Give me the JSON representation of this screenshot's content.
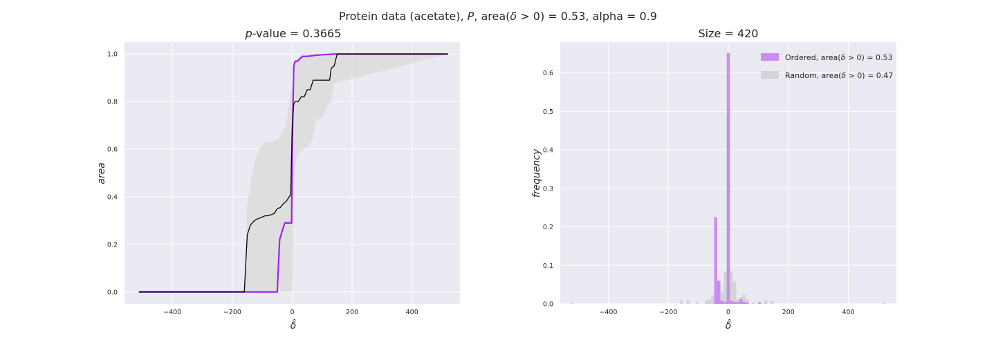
{
  "figure": {
    "suptitle": "Protein data (acetate), P, area(δ̂ > 0) = 0.53, alpha = 0.9",
    "suptitle_parts": {
      "prefix": "Protein data (acetate), ",
      "p": "P",
      "mid": ", area(",
      "delta": "δ",
      "suffix": " > 0) = 0.53, alpha = 0.9"
    },
    "colors": {
      "background": "#EAEAF2",
      "grid": "#FFFFFF",
      "ordered": "#A020F0",
      "random_line": "#000000",
      "band": "#DCDCDC",
      "ordered_hist": "#C77DF3",
      "random_hist": "#CFCFCF"
    }
  },
  "chart_data": [
    {
      "type": "line",
      "title": "p-value = 0.3665",
      "title_parts": {
        "italic": "p",
        "rest": "-value = 0.3665"
      },
      "xlabel": "δ̂",
      "ylabel": "area",
      "xlim": [
        -560,
        560
      ],
      "ylim": [
        -0.05,
        1.05
      ],
      "xticks": [
        -400,
        -200,
        0,
        200,
        400
      ],
      "xtick_labels": [
        "−400",
        "−200",
        "0",
        "200",
        "400"
      ],
      "yticks": [
        0.0,
        0.2,
        0.4,
        0.6,
        0.8,
        1.0
      ],
      "ytick_labels": [
        "0.0",
        "0.2",
        "0.4",
        "0.6",
        "0.8",
        "1.0"
      ],
      "grid": true,
      "band": {
        "name": "random band",
        "x": [
          -512,
          -160,
          -150,
          -140,
          -130,
          -120,
          -110,
          -100,
          -90,
          -80,
          -70,
          -60,
          -50,
          -40,
          -30,
          -20,
          -10,
          0,
          5,
          10,
          20,
          30,
          40,
          50,
          60,
          70,
          80,
          90,
          100,
          110,
          120,
          130,
          140,
          150,
          520
        ],
        "upper": [
          0.0,
          0.0,
          0.37,
          0.45,
          0.52,
          0.57,
          0.6,
          0.62,
          0.63,
          0.63,
          0.63,
          0.64,
          0.64,
          0.65,
          0.68,
          0.7,
          0.8,
          0.86,
          0.93,
          0.97,
          0.98,
          1.0,
          1.0,
          1.0,
          1.0,
          1.0,
          1.0,
          1.0,
          1.0,
          1.0,
          1.0,
          1.0,
          1.0,
          1.0,
          1.0
        ],
        "lower": [
          0.0,
          0.0,
          0.0,
          0.0,
          0.0,
          0.0,
          0.0,
          0.0,
          0.0,
          0.0,
          0.0,
          0.0,
          0.0,
          0.0,
          0.0,
          0.0,
          0.0,
          0.0,
          0.4,
          0.53,
          0.58,
          0.59,
          0.6,
          0.61,
          0.62,
          0.65,
          0.72,
          0.73,
          0.73,
          0.76,
          0.79,
          0.8,
          0.88,
          0.88,
          1.0
        ]
      },
      "series": [
        {
          "name": "Ordered",
          "x": [
            -512,
            -50,
            -42,
            -35,
            -25,
            -10,
            -2,
            0,
            5,
            10,
            18,
            25,
            35,
            50,
            80,
            100,
            120,
            140,
            150,
            520
          ],
          "y": [
            0.0,
            0.0,
            0.22,
            0.25,
            0.29,
            0.29,
            0.29,
            0.6,
            0.95,
            0.97,
            0.97,
            0.98,
            0.99,
            0.99,
            0.995,
            0.997,
            0.998,
            1.0,
            1.0,
            1.0
          ]
        },
        {
          "name": "Random",
          "x": [
            -512,
            -160,
            -150,
            -140,
            -130,
            -120,
            -110,
            -100,
            -90,
            -80,
            -70,
            -60,
            -50,
            -40,
            -30,
            -20,
            -10,
            -5,
            0,
            5,
            10,
            20,
            30,
            40,
            50,
            60,
            70,
            80,
            90,
            100,
            110,
            120,
            125,
            130,
            140,
            150,
            520
          ],
          "y": [
            0.0,
            0.0,
            0.24,
            0.28,
            0.295,
            0.305,
            0.31,
            0.315,
            0.32,
            0.32,
            0.325,
            0.33,
            0.35,
            0.355,
            0.37,
            0.38,
            0.4,
            0.41,
            0.7,
            0.79,
            0.8,
            0.8,
            0.82,
            0.82,
            0.85,
            0.85,
            0.89,
            0.89,
            0.89,
            0.89,
            0.89,
            0.89,
            0.89,
            0.94,
            0.95,
            1.0,
            1.0
          ]
        }
      ]
    },
    {
      "type": "bar",
      "title": "Size = 420",
      "xlabel": "δ̂",
      "ylabel": "frequency",
      "xlim": [
        -560,
        560
      ],
      "ylim": [
        0,
        0.68
      ],
      "xticks": [
        -400,
        -200,
        0,
        200,
        400
      ],
      "xtick_labels": [
        "−400",
        "−200",
        "0",
        "200",
        "400"
      ],
      "yticks": [
        0.0,
        0.1,
        0.2,
        0.3,
        0.4,
        0.5,
        0.6
      ],
      "ytick_labels": [
        "0.0",
        "0.1",
        "0.2",
        "0.3",
        "0.4",
        "0.5",
        "0.6"
      ],
      "grid": true,
      "legend_position": "upper-right",
      "bin_width": 10.4,
      "series": [
        {
          "name": "Ordered",
          "legend_parts": {
            "pre": "Ordered, area(",
            "delta": "δ",
            "post": " > 0) = 0.53"
          },
          "bins": [
            {
              "x": -42,
              "y": 0.225
            },
            {
              "x": -32,
              "y": 0.06
            },
            {
              "x": -22,
              "y": 0.008
            },
            {
              "x": -11,
              "y": 0.005
            },
            {
              "x": 0,
              "y": 0.652
            },
            {
              "x": 11,
              "y": 0.008
            },
            {
              "x": 21,
              "y": 0.005
            },
            {
              "x": 31,
              "y": 0.005
            },
            {
              "x": 42,
              "y": 0.012
            },
            {
              "x": 52,
              "y": 0.005
            },
            {
              "x": 63,
              "y": 0.004
            },
            {
              "x": 104,
              "y": 0.003
            }
          ]
        },
        {
          "name": "Random",
          "legend_parts": {
            "pre": "Random, area(",
            "delta": "δ",
            "post": " > 0) = 0.47"
          },
          "bins": [
            {
              "x": -520,
              "y": 0.002
            },
            {
              "x": -156,
              "y": 0.01
            },
            {
              "x": -135,
              "y": 0.009
            },
            {
              "x": -104,
              "y": 0.005
            },
            {
              "x": -73,
              "y": 0.008
            },
            {
              "x": -63,
              "y": 0.012
            },
            {
              "x": -52,
              "y": 0.021
            },
            {
              "x": -42,
              "y": 0.012
            },
            {
              "x": -31,
              "y": 0.055
            },
            {
              "x": -21,
              "y": 0.032
            },
            {
              "x": -10,
              "y": 0.083
            },
            {
              "x": 0,
              "y": 0.49
            },
            {
              "x": 10,
              "y": 0.083
            },
            {
              "x": 21,
              "y": 0.058
            },
            {
              "x": 31,
              "y": 0.012
            },
            {
              "x": 42,
              "y": 0.018
            },
            {
              "x": 52,
              "y": 0.024
            },
            {
              "x": 63,
              "y": 0.012
            },
            {
              "x": 83,
              "y": 0.004
            },
            {
              "x": 104,
              "y": 0.005
            },
            {
              "x": 125,
              "y": 0.01
            },
            {
              "x": 146,
              "y": 0.008
            },
            {
              "x": 520,
              "y": 0.002
            }
          ]
        }
      ]
    }
  ]
}
